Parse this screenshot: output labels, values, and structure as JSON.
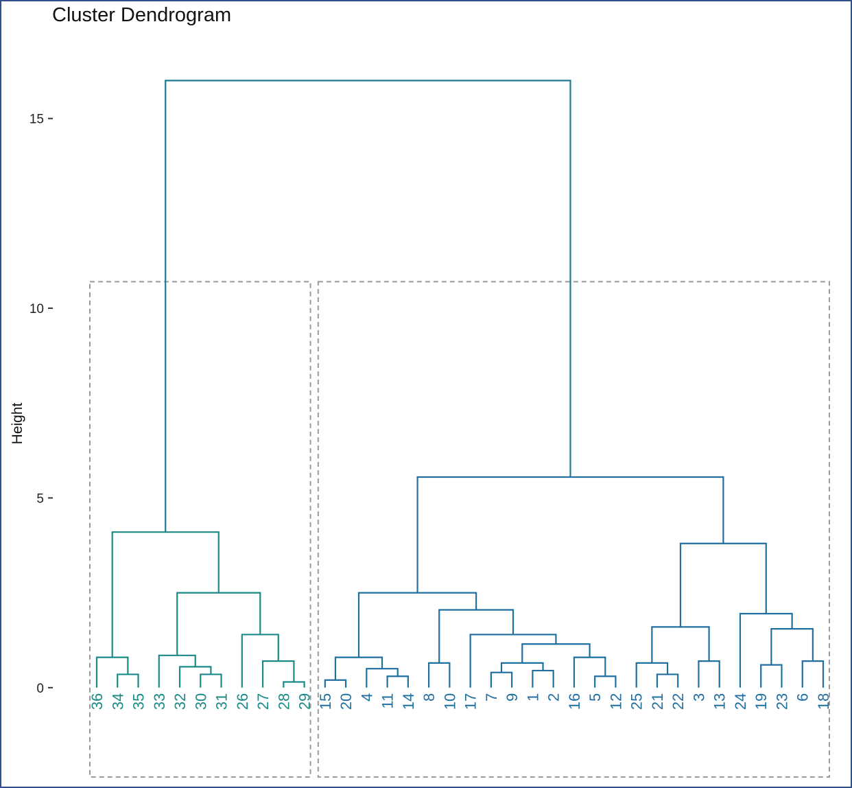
{
  "title": "Cluster Dendrogram",
  "chart_data": {
    "type": "dendrogram",
    "title": "Cluster Dendrogram",
    "xlabel": "",
    "ylabel": "Height",
    "ylim": [
      -2.5,
      17.4
    ],
    "y_ticks": [
      0,
      5,
      10,
      15
    ],
    "y_tick_labels": [
      "0",
      "5",
      "10",
      "15"
    ],
    "leaf_order": [
      "36",
      "34",
      "35",
      "33",
      "32",
      "30",
      "31",
      "26",
      "27",
      "28",
      "29",
      "15",
      "20",
      "4",
      "11",
      "14",
      "8",
      "10",
      "17",
      "7",
      "9",
      "1",
      "2",
      "16",
      "5",
      "12",
      "25",
      "21",
      "22",
      "3",
      "13",
      "24",
      "19",
      "23",
      "6",
      "18"
    ],
    "merges": [
      {
        "left": "34",
        "right": "35",
        "height": 0.35
      },
      {
        "left": "36",
        "right": "34,35",
        "height": 0.8
      },
      {
        "left": "30",
        "right": "31",
        "height": 0.35
      },
      {
        "left": "32",
        "right": "30,31",
        "height": 0.55
      },
      {
        "left": "33",
        "right": "32,30,31",
        "height": 0.85
      },
      {
        "left": "28",
        "right": "29",
        "height": 0.15
      },
      {
        "left": "27",
        "right": "28,29",
        "height": 0.7
      },
      {
        "left": "26",
        "right": "27,28,29",
        "height": 1.4
      },
      {
        "left": "33,32,30,31",
        "right": "26,27,28,29",
        "height": 2.5
      },
      {
        "left": "36,34,35",
        "right": "33,32,30,31,26,27,28,29",
        "height": 4.1
      },
      {
        "left": "15",
        "right": "20",
        "height": 0.2
      },
      {
        "left": "11",
        "right": "14",
        "height": 0.3
      },
      {
        "left": "4",
        "right": "11,14",
        "height": 0.5
      },
      {
        "left": "15,20",
        "right": "4,11,14",
        "height": 0.8
      },
      {
        "left": "8",
        "right": "10",
        "height": 0.65
      },
      {
        "left": "7",
        "right": "9",
        "height": 0.4
      },
      {
        "left": "1",
        "right": "2",
        "height": 0.45
      },
      {
        "left": "7,9",
        "right": "1,2",
        "height": 0.65
      },
      {
        "left": "5",
        "right": "12",
        "height": 0.3
      },
      {
        "left": "16",
        "right": "5,12",
        "height": 0.8
      },
      {
        "left": "7,9,1,2",
        "right": "16,5,12",
        "height": 1.15
      },
      {
        "left": "17",
        "right": "7,9,1,2,16,5,12",
        "height": 1.4
      },
      {
        "left": "8,10",
        "right": "17,7,9,1,2,16,5,12",
        "height": 2.05
      },
      {
        "left": "15,20,4,11,14",
        "right": "8,10,17,7,9,1,2,16,5,12",
        "height": 2.5
      },
      {
        "left": "21",
        "right": "22",
        "height": 0.35
      },
      {
        "left": "25",
        "right": "21,22",
        "height": 0.65
      },
      {
        "left": "3",
        "right": "13",
        "height": 0.7
      },
      {
        "left": "25,21,22",
        "right": "3,13",
        "height": 1.6
      },
      {
        "left": "19",
        "right": "23",
        "height": 0.6
      },
      {
        "left": "6",
        "right": "18",
        "height": 0.7
      },
      {
        "left": "19,23",
        "right": "6,18",
        "height": 1.55
      },
      {
        "left": "24",
        "right": "19,23,6,18",
        "height": 1.95
      },
      {
        "left": "25,21,22,3,13",
        "right": "24,19,23,6,18",
        "height": 3.8
      },
      {
        "left": "15,20,4,11,14,8,10,17,7,9,1,2,16,5,12",
        "right": "25,21,22,3,13,24,19,23,6,18",
        "height": 5.55
      },
      {
        "left": "36,34,35,33,32,30,31,26,27,28,29",
        "right": "15,20,4,11,14,8,10,17,7,9,1,2,16,5,12,25,21,22,3,13,24,19,23,6,18",
        "height": 16.0
      }
    ],
    "clusters": [
      {
        "name": "",
        "color": "#1a8a87",
        "leaves": [
          "36",
          "34",
          "35",
          "33",
          "32",
          "30",
          "31",
          "26",
          "27",
          "28",
          "29"
        ]
      },
      {
        "name": "",
        "color": "#1f6fa0",
        "leaves": [
          "15",
          "20",
          "4",
          "11",
          "14",
          "8",
          "10",
          "17",
          "7",
          "9",
          "1",
          "2",
          "16",
          "5",
          "12",
          "25",
          "21",
          "22",
          "3",
          "13",
          "24",
          "19",
          "23",
          "6",
          "18"
        ]
      }
    ],
    "root_color": "#1f7a96",
    "cluster_boxes": "dashed gray rectangles around each of the 2 clusters",
    "grid": false,
    "legend": "none"
  }
}
